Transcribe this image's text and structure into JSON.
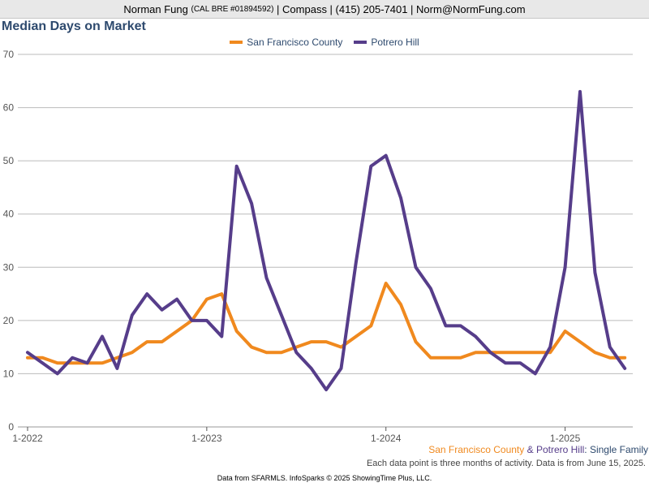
{
  "header": {
    "name": "Norman Fung",
    "license": "(CAL BRE #01894592)",
    "rest": "| Compass | (415) 205-7401 | Norm@NormFung.com"
  },
  "colors": {
    "sf": "#f0891e",
    "potrero": "#563d8a",
    "title": "#2e4a6e"
  },
  "chart_data": {
    "type": "line",
    "title": "Median Days on Market",
    "ylim": [
      0,
      70
    ],
    "yticks": [
      0,
      10,
      20,
      30,
      40,
      50,
      60,
      70
    ],
    "xlim": [
      0,
      41
    ],
    "xticks": [
      {
        "value": 0,
        "label": "1-2022"
      },
      {
        "value": 12,
        "label": "1-2023"
      },
      {
        "value": 24,
        "label": "1-2024"
      },
      {
        "value": 36,
        "label": "1-2025"
      }
    ],
    "grid": true,
    "legend_position": "top-center",
    "series": [
      {
        "name": "San Francisco County",
        "color": "#f0891e",
        "values": [
          13,
          13,
          12,
          12,
          12,
          12,
          13,
          14,
          16,
          16,
          18,
          20,
          24,
          25,
          18,
          15,
          14,
          14,
          15,
          16,
          16,
          15,
          17,
          19,
          27,
          23,
          16,
          13,
          13,
          13,
          14,
          14,
          14,
          14,
          14,
          14,
          18,
          16,
          14,
          13,
          13
        ]
      },
      {
        "name": "Potrero Hill",
        "color": "#563d8a",
        "values": [
          14,
          12,
          10,
          13,
          12,
          17,
          11,
          21,
          25,
          22,
          24,
          20,
          20,
          17,
          49,
          42,
          28,
          21,
          14,
          11,
          7,
          11,
          31,
          49,
          51,
          43,
          30,
          26,
          19,
          19,
          17,
          14,
          12,
          12,
          10,
          15,
          30,
          63,
          29,
          15,
          11
        ]
      }
    ]
  },
  "footer": {
    "sf_label": "San Francisco County",
    "amp": " & ",
    "potrero_label": "Potrero Hill",
    "type_label": ": Single Family",
    "note": "Each data point is three months of activity. Data is from June 15, 2025.",
    "source": "Data from SFARMLS. InfoSparks © 2025 ShowingTime Plus, LLC."
  }
}
